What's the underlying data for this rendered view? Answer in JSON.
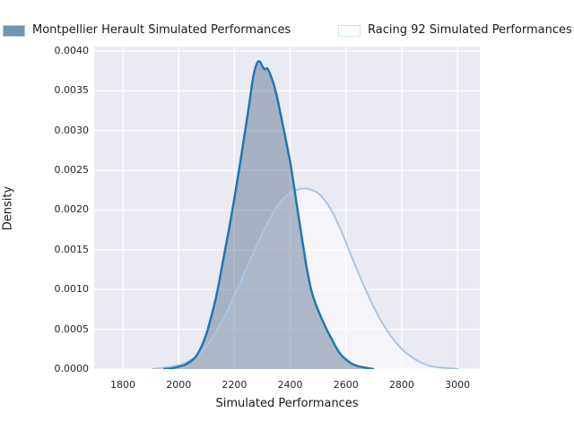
{
  "legend": {
    "entries": [
      {
        "label": "Montpellier Herault Simulated Performances",
        "swatch_fill": "#7494ad",
        "swatch_border": "#a6cbe3"
      },
      {
        "label": "Racing 92 Simulated Performances",
        "swatch_fill": "#fdfdfe",
        "swatch_border": "#cfe3f2"
      }
    ]
  },
  "chart_data": {
    "type": "area",
    "subtype": "kde-density",
    "title": "",
    "xlabel": "Simulated Performances",
    "ylabel": "Density",
    "xlim": [
      1697,
      3080
    ],
    "ylim": [
      0,
      0.004056
    ],
    "xticks": [
      1800,
      2000,
      2200,
      2400,
      2600,
      2800,
      3000
    ],
    "yticks": [
      0.0,
      0.0005,
      0.001,
      0.0015,
      0.002,
      0.0025,
      0.003,
      0.0035,
      0.004
    ],
    "ytick_labels": [
      "0.0000",
      "0.0005",
      "0.0010",
      "0.0015",
      "0.0020",
      "0.0025",
      "0.0030",
      "0.0035",
      "0.0040"
    ],
    "grid": true,
    "legend_position": "top",
    "plot_background": "#eaeaf2",
    "grid_color": "#ffffff",
    "series": [
      {
        "name": "Montpellier Herault Simulated Performances",
        "line_color": "#2077b4",
        "line_width": 2.5,
        "fill_color": "rgba(85,110,140,0.45)",
        "points": [
          [
            1945,
            0
          ],
          [
            1975,
            1e-05
          ],
          [
            2000,
            3e-05
          ],
          [
            2020,
            5e-05
          ],
          [
            2040,
            9e-05
          ],
          [
            2060,
            0.00015
          ],
          [
            2080,
            0.00027
          ],
          [
            2100,
            0.00045
          ],
          [
            2120,
            0.0007
          ],
          [
            2140,
            0.001
          ],
          [
            2160,
            0.00138
          ],
          [
            2180,
            0.00175
          ],
          [
            2200,
            0.00215
          ],
          [
            2220,
            0.00258
          ],
          [
            2240,
            0.00303
          ],
          [
            2255,
            0.00338
          ],
          [
            2268,
            0.00368
          ],
          [
            2280,
            0.00384
          ],
          [
            2290,
            0.00387
          ],
          [
            2300,
            0.00381
          ],
          [
            2308,
            0.00377
          ],
          [
            2318,
            0.00378
          ],
          [
            2328,
            0.00371
          ],
          [
            2342,
            0.00357
          ],
          [
            2356,
            0.00337
          ],
          [
            2370,
            0.00313
          ],
          [
            2385,
            0.00287
          ],
          [
            2400,
            0.0026
          ],
          [
            2415,
            0.00227
          ],
          [
            2430,
            0.00192
          ],
          [
            2445,
            0.00158
          ],
          [
            2460,
            0.00126
          ],
          [
            2475,
            0.001
          ],
          [
            2490,
            0.00083
          ],
          [
            2505,
            0.0007
          ],
          [
            2520,
            0.00058
          ],
          [
            2535,
            0.00047
          ],
          [
            2550,
            0.00037
          ],
          [
            2565,
            0.00027
          ],
          [
            2580,
            0.00019
          ],
          [
            2600,
            0.00012
          ],
          [
            2620,
            7e-05
          ],
          [
            2640,
            4e-05
          ],
          [
            2665,
            2e-05
          ],
          [
            2700,
            0
          ]
        ]
      },
      {
        "name": "Racing 92 Simulated Performances",
        "line_color": "#a9c7e4",
        "line_width": 2,
        "fill_color": "rgba(255,255,255,0.5)",
        "points": [
          [
            1905,
            0
          ],
          [
            1950,
            2e-05
          ],
          [
            2000,
            5e-05
          ],
          [
            2030,
            9e-05
          ],
          [
            2060,
            0.00015
          ],
          [
            2090,
            0.00025
          ],
          [
            2120,
            0.00039
          ],
          [
            2150,
            0.00057
          ],
          [
            2180,
            0.00077
          ],
          [
            2210,
            0.001
          ],
          [
            2240,
            0.00124
          ],
          [
            2270,
            0.00148
          ],
          [
            2300,
            0.00171
          ],
          [
            2330,
            0.00191
          ],
          [
            2360,
            0.00208
          ],
          [
            2390,
            0.00219
          ],
          [
            2420,
            0.00225
          ],
          [
            2450,
            0.00227
          ],
          [
            2480,
            0.00225
          ],
          [
            2510,
            0.00218
          ],
          [
            2540,
            0.00204
          ],
          [
            2570,
            0.00184
          ],
          [
            2600,
            0.00159
          ],
          [
            2630,
            0.00133
          ],
          [
            2660,
            0.00108
          ],
          [
            2690,
            0.00085
          ],
          [
            2720,
            0.00064
          ],
          [
            2750,
            0.00047
          ],
          [
            2780,
            0.00033
          ],
          [
            2810,
            0.00022
          ],
          [
            2840,
            0.00014
          ],
          [
            2870,
            8e-05
          ],
          [
            2900,
            4e-05
          ],
          [
            2935,
            2e-05
          ],
          [
            2970,
            1e-05
          ],
          [
            3005,
            0
          ]
        ]
      }
    ]
  }
}
